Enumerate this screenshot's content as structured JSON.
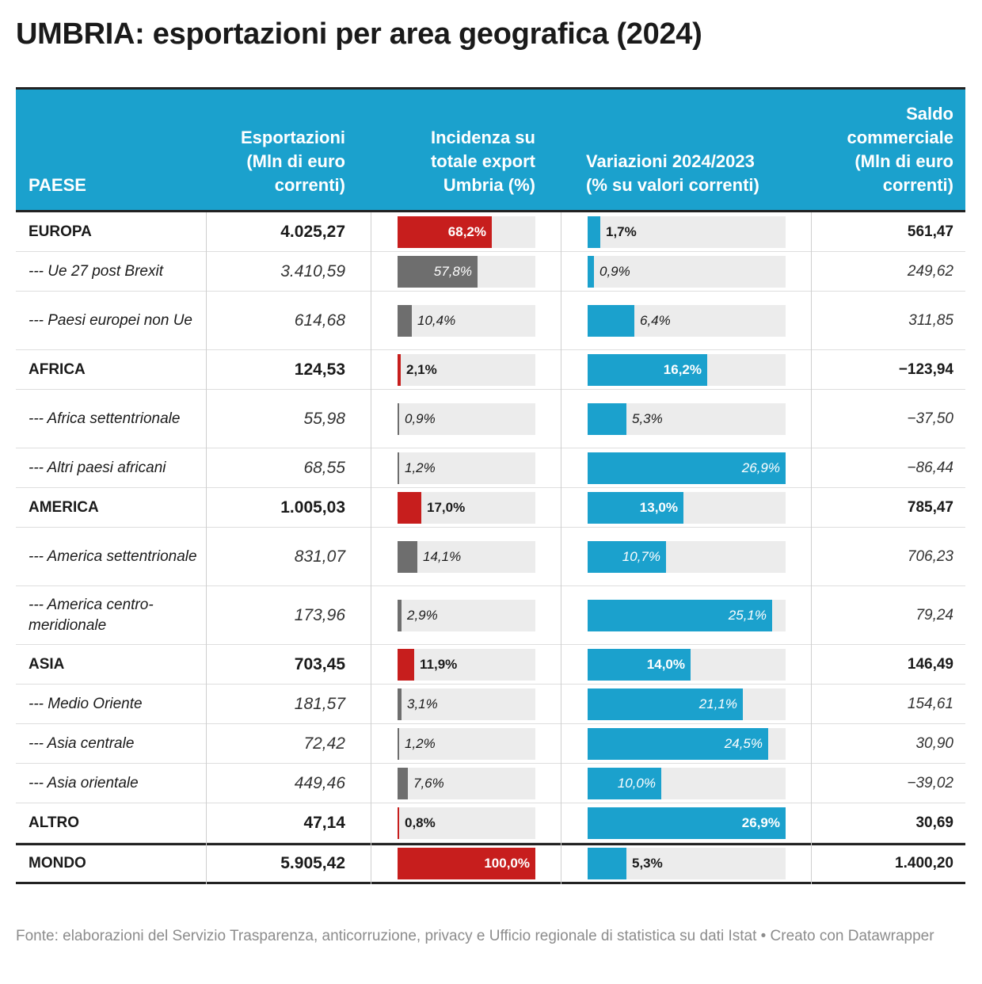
{
  "title": "UMBRIA: esportazioni per area geografica (2024)",
  "header": {
    "paese": "PAESE",
    "esportazioni": [
      "Esportazioni",
      "(Mln di euro",
      "correnti)"
    ],
    "incidenza": [
      "Incidenza su",
      "totale export",
      "Umbria (%)"
    ],
    "variazioni": [
      "Variazioni 2024/2023",
      "(% su valori correnti)"
    ],
    "saldo": [
      "Saldo",
      "commerciale",
      "(Mln di euro",
      "correnti)"
    ]
  },
  "colors": {
    "header_bg": "#1ba1cd",
    "bar_red": "#c71e1d",
    "bar_gray": "#6e6e6e",
    "bar_blue": "#1ba1cd",
    "track": "#ececec"
  },
  "chart_data": {
    "type": "table",
    "columns": [
      "PAESE",
      "Esportazioni (Mln di euro correnti)",
      "Incidenza su totale export Umbria (%)",
      "Variazioni 2024/2023 (% su valori correnti)",
      "Saldo commerciale (Mln di euro correnti)"
    ],
    "incidenza_scale_max": 100,
    "variazione_scale_max": 26.9,
    "rows": [
      {
        "paese": "EUROPA",
        "level": "main",
        "esportazioni": "4.025,27",
        "incidenza": 68.2,
        "incidenza_label": "68,2%",
        "variazione": 1.7,
        "variazione_label": "1,7%",
        "saldo": "561,47"
      },
      {
        "paese": "--- Ue 27 post Brexit",
        "level": "sub",
        "esportazioni": "3.410,59",
        "incidenza": 57.8,
        "incidenza_label": "57,8%",
        "variazione": 0.9,
        "variazione_label": "0,9%",
        "saldo": "249,62"
      },
      {
        "paese": "--- Paesi europei non Ue",
        "level": "sub",
        "esportazioni": "614,68",
        "incidenza": 10.4,
        "incidenza_label": "10,4%",
        "variazione": 6.4,
        "variazione_label": "6,4%",
        "saldo": "311,85"
      },
      {
        "paese": "AFRICA",
        "level": "main",
        "esportazioni": "124,53",
        "incidenza": 2.1,
        "incidenza_label": "2,1%",
        "variazione": 16.2,
        "variazione_label": "16,2%",
        "saldo": "−123,94"
      },
      {
        "paese": "--- Africa settentrionale",
        "level": "sub",
        "esportazioni": "55,98",
        "incidenza": 0.9,
        "incidenza_label": "0,9%",
        "variazione": 5.3,
        "variazione_label": "5,3%",
        "saldo": "−37,50"
      },
      {
        "paese": "--- Altri paesi africani",
        "level": "sub",
        "esportazioni": "68,55",
        "incidenza": 1.2,
        "incidenza_label": "1,2%",
        "variazione": 26.9,
        "variazione_label": "26,9%",
        "saldo": "−86,44"
      },
      {
        "paese": "AMERICA",
        "level": "main",
        "esportazioni": "1.005,03",
        "incidenza": 17.0,
        "incidenza_label": "17,0%",
        "variazione": 13.0,
        "variazione_label": "13,0%",
        "saldo": "785,47"
      },
      {
        "paese": "--- America settentrionale",
        "level": "sub",
        "esportazioni": "831,07",
        "incidenza": 14.1,
        "incidenza_label": "14,1%",
        "variazione": 10.7,
        "variazione_label": "10,7%",
        "saldo": "706,23"
      },
      {
        "paese": "--- America centro-meridionale",
        "level": "sub",
        "esportazioni": "173,96",
        "incidenza": 2.9,
        "incidenza_label": "2,9%",
        "variazione": 25.1,
        "variazione_label": "25,1%",
        "saldo": "79,24"
      },
      {
        "paese": "ASIA",
        "level": "main",
        "esportazioni": "703,45",
        "incidenza": 11.9,
        "incidenza_label": "11,9%",
        "variazione": 14.0,
        "variazione_label": "14,0%",
        "saldo": "146,49"
      },
      {
        "paese": "--- Medio Oriente",
        "level": "sub",
        "esportazioni": "181,57",
        "incidenza": 3.1,
        "incidenza_label": "3,1%",
        "variazione": 21.1,
        "variazione_label": "21,1%",
        "saldo": "154,61"
      },
      {
        "paese": "--- Asia centrale",
        "level": "sub",
        "esportazioni": "72,42",
        "incidenza": 1.2,
        "incidenza_label": "1,2%",
        "variazione": 24.5,
        "variazione_label": "24,5%",
        "saldo": "30,90"
      },
      {
        "paese": "--- Asia orientale",
        "level": "sub",
        "esportazioni": "449,46",
        "incidenza": 7.6,
        "incidenza_label": "7,6%",
        "variazione": 10.0,
        "variazione_label": "10,0%",
        "saldo": "−39,02"
      },
      {
        "paese": "ALTRO",
        "level": "main",
        "esportazioni": "47,14",
        "incidenza": 0.8,
        "incidenza_label": "0,8%",
        "variazione": 26.9,
        "variazione_label": "26,9%",
        "saldo": "30,69"
      },
      {
        "paese": "MONDO",
        "level": "total",
        "esportazioni": "5.905,42",
        "incidenza": 100.0,
        "incidenza_label": "100,0%",
        "variazione": 5.3,
        "variazione_label": "5,3%",
        "saldo": "1.400,20"
      }
    ]
  },
  "source": "Fonte: elaborazioni del Servizio Trasparenza, anticorruzione, privacy e Ufficio regionale di statistica su dati Istat • Creato con Datawrapper"
}
